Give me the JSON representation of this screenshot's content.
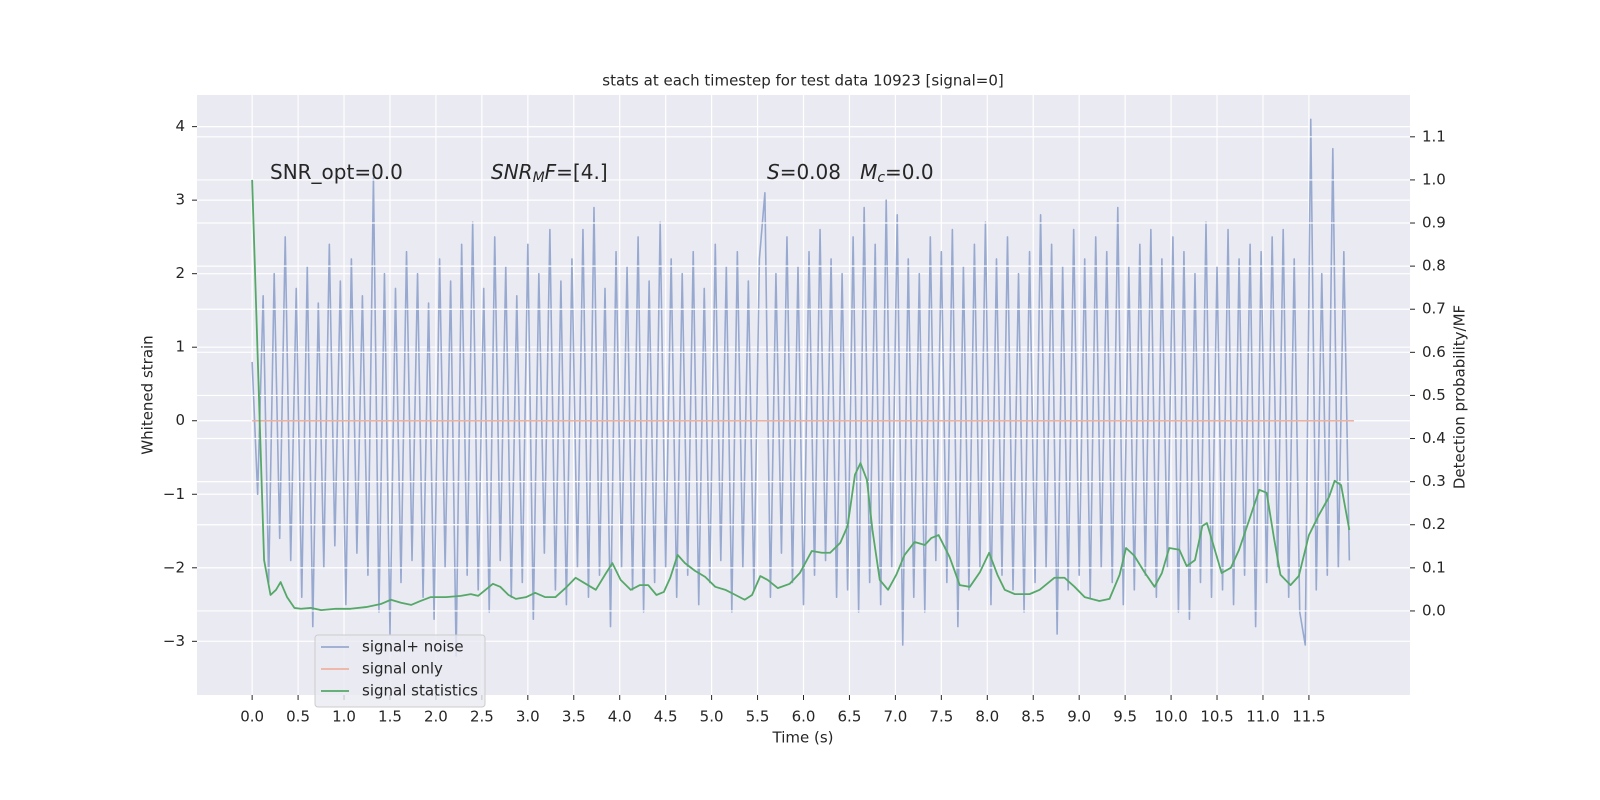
{
  "chart_data": {
    "type": "line",
    "title": "stats at each timestep for test data 10923 [signal=0]",
    "xlabel": "Time (s)",
    "ylabel": "Whitened strain",
    "y2label": "Detection probability/MF",
    "grid": true,
    "legend": "lower left",
    "xlim": [
      -0.6,
      12.6
    ],
    "ylim": [
      -3.73,
      4.43
    ],
    "y2lim": [
      -0.195,
      1.197
    ],
    "xticks": [
      {
        "value": 0,
        "label": "0.0"
      },
      {
        "value": 0.5,
        "label": "0.5"
      },
      {
        "value": 1,
        "label": "1.0"
      },
      {
        "value": 1.5,
        "label": "1.5"
      },
      {
        "value": 2,
        "label": "2.0"
      },
      {
        "value": 2.5,
        "label": "2.5"
      },
      {
        "value": 3,
        "label": "3.0"
      },
      {
        "value": 3.5,
        "label": "3.5"
      },
      {
        "value": 4,
        "label": "4.0"
      },
      {
        "value": 4.5,
        "label": "4.5"
      },
      {
        "value": 5,
        "label": "5.0"
      },
      {
        "value": 5.5,
        "label": "5.5"
      },
      {
        "value": 6,
        "label": "6.0"
      },
      {
        "value": 6.5,
        "label": "6.5"
      },
      {
        "value": 7,
        "label": "7.0"
      },
      {
        "value": 7.5,
        "label": "7.5"
      },
      {
        "value": 8,
        "label": "8.0"
      },
      {
        "value": 8.5,
        "label": "8.5"
      },
      {
        "value": 9,
        "label": "9.0"
      },
      {
        "value": 9.5,
        "label": "9.5"
      },
      {
        "value": 10,
        "label": "10.0"
      },
      {
        "value": 10.5,
        "label": "10.5"
      },
      {
        "value": 11,
        "label": "11.0"
      },
      {
        "value": 11.5,
        "label": "11.5"
      }
    ],
    "yticks": [
      {
        "value": -3,
        "label": "−3"
      },
      {
        "value": -2,
        "label": "−2"
      },
      {
        "value": -1,
        "label": "−1"
      },
      0,
      1,
      2,
      3,
      4
    ],
    "y2ticks": [
      {
        "value": 0,
        "label": "0.0"
      },
      {
        "value": 0.1,
        "label": "0.1"
      },
      {
        "value": 0.2,
        "label": "0.2"
      },
      {
        "value": 0.3,
        "label": "0.3"
      },
      {
        "value": 0.4,
        "label": "0.4"
      },
      {
        "value": 0.5,
        "label": "0.5"
      },
      {
        "value": 0.6,
        "label": "0.6"
      },
      {
        "value": 0.7,
        "label": "0.7"
      },
      {
        "value": 0.8,
        "label": "0.8"
      },
      {
        "value": 0.9,
        "label": "0.9"
      },
      {
        "value": 1.0,
        "label": "1.0"
      },
      {
        "value": 1.1,
        "label": "1.1"
      }
    ],
    "annotations": [
      {
        "parts": [
          {
            "text": "SNR_opt=0.0",
            "style": "normal"
          }
        ]
      },
      {
        "parts": [
          {
            "text": "SNR",
            "style": "italic"
          },
          {
            "text": "M",
            "style": "sub"
          },
          {
            "text": "F",
            "style": "italic"
          },
          {
            "text": "=[4.]",
            "style": "normal"
          }
        ]
      },
      {
        "parts": [
          {
            "text": "S",
            "style": "italic"
          },
          {
            "text": "=0.08   ",
            "style": "normal"
          },
          {
            "text": "M",
            "style": "italic"
          },
          {
            "text": "c",
            "style": "sub"
          },
          {
            "text": "=0.0",
            "style": "normal"
          }
        ]
      }
    ],
    "series": [
      {
        "name": "signal+ noise",
        "color": "#98a9d0",
        "x": [
          0,
          0.06,
          0.12,
          0.18,
          0.24,
          0.3,
          0.36,
          0.42,
          0.48,
          0.54,
          0.6,
          0.66,
          0.72,
          0.78,
          0.84,
          0.9,
          0.96,
          1.02,
          1.08,
          1.14,
          1.2,
          1.26,
          1.32,
          1.38,
          1.44,
          1.5,
          1.56,
          1.62,
          1.68,
          1.74,
          1.8,
          1.86,
          1.92,
          1.98,
          2.04,
          2.1,
          2.16,
          2.22,
          2.28,
          2.34,
          2.4,
          2.46,
          2.52,
          2.58,
          2.64,
          2.7,
          2.76,
          2.82,
          2.88,
          2.94,
          3.0,
          3.06,
          3.12,
          3.18,
          3.24,
          3.3,
          3.36,
          3.42,
          3.48,
          3.54,
          3.6,
          3.66,
          3.72,
          3.78,
          3.84,
          3.9,
          3.96,
          4.02,
          4.08,
          4.14,
          4.2,
          4.26,
          4.32,
          4.38,
          4.44,
          4.5,
          4.56,
          4.62,
          4.68,
          4.74,
          4.8,
          4.86,
          4.92,
          4.98,
          5.04,
          5.1,
          5.16,
          5.22,
          5.28,
          5.34,
          5.4,
          5.46,
          5.52,
          5.58,
          5.64,
          5.7,
          5.76,
          5.82,
          5.88,
          5.94,
          6.0,
          6.06,
          6.12,
          6.18,
          6.24,
          6.3,
          6.36,
          6.42,
          6.48,
          6.54,
          6.6,
          6.66,
          6.72,
          6.78,
          6.84,
          6.9,
          6.96,
          7.02,
          7.08,
          7.14,
          7.2,
          7.26,
          7.32,
          7.38,
          7.44,
          7.5,
          7.56,
          7.62,
          7.68,
          7.74,
          7.8,
          7.86,
          7.92,
          7.98,
          8.04,
          8.1,
          8.16,
          8.22,
          8.28,
          8.34,
          8.4,
          8.46,
          8.52,
          8.58,
          8.64,
          8.7,
          8.76,
          8.82,
          8.88,
          8.94,
          9.0,
          9.06,
          9.12,
          9.18,
          9.24,
          9.3,
          9.36,
          9.42,
          9.48,
          9.54,
          9.6,
          9.66,
          9.72,
          9.78,
          9.84,
          9.9,
          9.96,
          10.02,
          10.08,
          10.14,
          10.2,
          10.26,
          10.32,
          10.38,
          10.44,
          10.5,
          10.56,
          10.62,
          10.68,
          10.74,
          10.8,
          10.86,
          10.92,
          10.98,
          11.04,
          11.1,
          11.16,
          11.22,
          11.28,
          11.34,
          11.4,
          11.46,
          11.52,
          11.58,
          11.64,
          11.7,
          11.76,
          11.82,
          11.88,
          11.94
        ],
        "values": [
          0.8,
          -1.0,
          1.7,
          -2.2,
          2.0,
          -1.6,
          2.5,
          -1.9,
          1.8,
          -2.4,
          2.1,
          -2.8,
          1.6,
          -2.0,
          2.4,
          -1.7,
          1.9,
          -2.5,
          2.2,
          -1.8,
          1.7,
          -2.1,
          3.3,
          -2.6,
          2.0,
          -2.9,
          1.8,
          -2.2,
          2.3,
          -1.9,
          2.0,
          -2.4,
          1.6,
          -2.7,
          2.2,
          -2.0,
          1.9,
          -3.2,
          2.4,
          -2.1,
          2.7,
          -2.3,
          1.8,
          -2.6,
          2.5,
          -1.9,
          2.1,
          -2.4,
          1.7,
          -2.2,
          2.4,
          -2.7,
          2.0,
          -1.8,
          2.6,
          -2.3,
          1.9,
          -2.5,
          2.2,
          -2.0,
          2.6,
          -2.4,
          2.9,
          -2.1,
          1.8,
          -2.8,
          2.3,
          -2.0,
          2.1,
          -2.3,
          2.5,
          -2.6,
          1.9,
          -2.2,
          2.7,
          -2.0,
          2.2,
          -2.4,
          2.0,
          -2.1,
          2.3,
          -2.5,
          1.8,
          -2.2,
          2.4,
          -1.9,
          2.1,
          -2.6,
          2.3,
          -2.0,
          1.9,
          -2.3,
          2.2,
          3.1,
          -2.4,
          2.0,
          -1.8,
          2.5,
          -2.2,
          2.1,
          -2.5,
          2.3,
          -2.1,
          2.6,
          -1.9,
          2.2,
          -2.4,
          2.0,
          -2.3,
          2.5,
          -2.6,
          2.9,
          -2.2,
          2.4,
          -2.5,
          3.0,
          -2.0,
          2.8,
          -3.05,
          2.2,
          -2.4,
          2.0,
          -2.6,
          2.5,
          -1.9,
          2.3,
          -2.2,
          2.6,
          -2.8,
          2.1,
          -2.3,
          2.4,
          -2.0,
          2.7,
          -2.5,
          2.2,
          -2.1,
          2.5,
          -2.3,
          2.0,
          -2.6,
          2.3,
          -2.2,
          2.8,
          -2.0,
          2.4,
          -2.9,
          2.1,
          -2.3,
          2.6,
          -2.1,
          2.2,
          -2.4,
          2.5,
          -2.0,
          2.3,
          -2.2,
          2.9,
          -2.5,
          2.1,
          -2.3,
          2.4,
          -2.1,
          2.6,
          -2.4,
          2.2,
          -2.0,
          2.5,
          -2.6,
          2.3,
          -2.7,
          2.0,
          -2.2,
          2.7,
          -2.4,
          2.1,
          -2.3,
          2.6,
          -2.5,
          2.2,
          -2.1,
          2.4,
          -2.8,
          2.3,
          -2.2,
          2.5,
          -2.0,
          2.6,
          -2.4,
          2.2,
          -2.6,
          -3.05,
          4.1,
          -2.3,
          2.0,
          -2.1,
          3.7,
          -2.0,
          2.3,
          -1.9
        ]
      },
      {
        "name": "signal only",
        "color": "#eeb2a0",
        "x": [
          0,
          11.99
        ],
        "values": [
          0,
          0
        ]
      },
      {
        "name": "signal statistics",
        "color": "#55a868",
        "axis": "y2",
        "x": [
          0,
          0.13,
          0.2,
          0.26,
          0.31,
          0.38,
          0.46,
          0.53,
          0.64,
          0.75,
          0.91,
          1.07,
          1.24,
          1.4,
          1.51,
          1.62,
          1.73,
          1.83,
          1.94,
          2.11,
          2.27,
          2.38,
          2.46,
          2.54,
          2.62,
          2.7,
          2.79,
          2.87,
          2.98,
          3.08,
          3.19,
          3.3,
          3.41,
          3.52,
          3.63,
          3.74,
          3.84,
          3.92,
          4.01,
          4.12,
          4.22,
          4.31,
          4.4,
          4.48,
          4.55,
          4.63,
          4.71,
          4.82,
          4.93,
          5.04,
          5.15,
          5.26,
          5.36,
          5.44,
          5.53,
          5.61,
          5.72,
          5.85,
          5.96,
          6.09,
          6.2,
          6.29,
          6.4,
          6.48,
          6.56,
          6.62,
          6.69,
          6.75,
          6.83,
          6.92,
          7.01,
          7.1,
          7.21,
          7.32,
          7.39,
          7.47,
          7.59,
          7.7,
          7.81,
          7.92,
          8.02,
          8.11,
          8.19,
          8.3,
          8.46,
          8.57,
          8.73,
          8.84,
          8.95,
          9.06,
          9.22,
          9.33,
          9.44,
          9.51,
          9.6,
          9.71,
          9.82,
          9.9,
          9.98,
          10.09,
          10.17,
          10.26,
          10.34,
          10.39,
          10.47,
          10.55,
          10.65,
          10.74,
          10.85,
          10.96,
          11.04,
          11.12,
          11.19,
          11.3,
          11.39,
          11.5,
          11.61,
          11.72,
          11.78,
          11.85,
          11.94
        ],
        "values": [
          1.0,
          0.118,
          0.037,
          0.049,
          0.067,
          0.032,
          0.007,
          0.005,
          0.007,
          0.002,
          0.005,
          0.005,
          0.009,
          0.016,
          0.026,
          0.019,
          0.014,
          0.023,
          0.032,
          0.032,
          0.035,
          0.039,
          0.035,
          0.049,
          0.063,
          0.056,
          0.037,
          0.028,
          0.032,
          0.042,
          0.032,
          0.032,
          0.053,
          0.077,
          0.063,
          0.049,
          0.084,
          0.111,
          0.072,
          0.049,
          0.06,
          0.06,
          0.037,
          0.044,
          0.077,
          0.13,
          0.111,
          0.093,
          0.079,
          0.056,
          0.049,
          0.037,
          0.026,
          0.037,
          0.081,
          0.072,
          0.053,
          0.063,
          0.088,
          0.139,
          0.135,
          0.135,
          0.158,
          0.197,
          0.316,
          0.343,
          0.304,
          0.188,
          0.072,
          0.049,
          0.084,
          0.13,
          0.16,
          0.153,
          0.169,
          0.176,
          0.125,
          0.06,
          0.056,
          0.09,
          0.135,
          0.084,
          0.049,
          0.039,
          0.039,
          0.049,
          0.077,
          0.077,
          0.056,
          0.032,
          0.023,
          0.028,
          0.084,
          0.146,
          0.128,
          0.09,
          0.056,
          0.088,
          0.146,
          0.142,
          0.104,
          0.118,
          0.197,
          0.204,
          0.146,
          0.088,
          0.1,
          0.142,
          0.211,
          0.281,
          0.274,
          0.169,
          0.084,
          0.06,
          0.081,
          0.176,
          0.223,
          0.265,
          0.302,
          0.292,
          0.188
        ]
      }
    ]
  }
}
